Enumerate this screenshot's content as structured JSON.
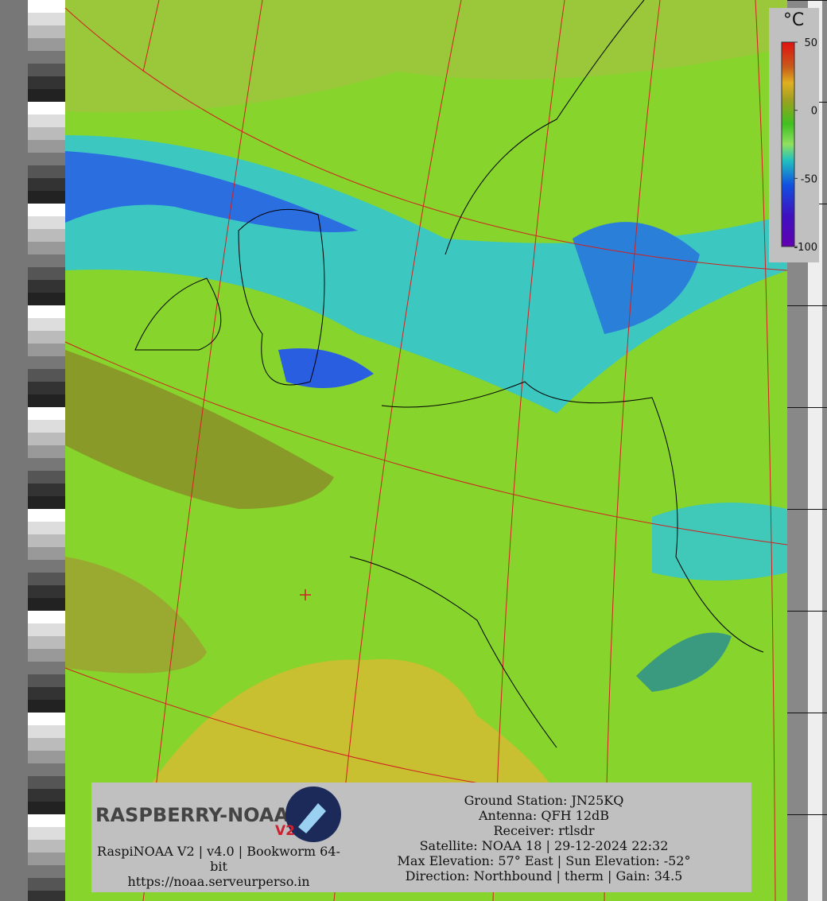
{
  "legend": {
    "unit": "°C",
    "ticks": [
      50,
      0,
      -50,
      -100
    ]
  },
  "logo": {
    "name": "RASPBERRY-NOAA",
    "badge": "V2"
  },
  "footer": {
    "version_lines": [
      "RaspiNOAA V2 | v4.0 | Bookworm 64-",
      "bit"
    ],
    "url": "https://noaa.serveurperso.in"
  },
  "pass_info": [
    "Ground Station: JN25KQ",
    "Antenna: QFH 12dB",
    "Receiver: rtlsdr",
    "Satellite: NOAA 18 | 29-12-2024 22:32",
    "Max Elevation: 57° East | Sun Elevation: -52°",
    "Direction: Northbound | therm | Gain: 34.5"
  ]
}
